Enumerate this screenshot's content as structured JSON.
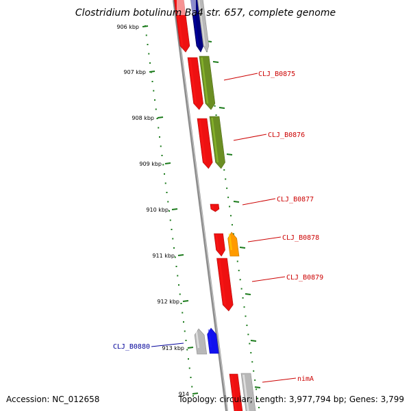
{
  "title": "Clostridium botulinum Ba4 str. 657, complete genome",
  "footer": {
    "accession": "Accession: NC_012658",
    "summary": "Topology: circular; Length: 3,977,794 bp; Genes: 3,799"
  },
  "colors": {
    "backbone": "#8c8c8c",
    "tick": "#1a7a1a",
    "forward_label": "#cc0000",
    "reverse_label": "#000099",
    "gene_red": "#ee1111",
    "gene_olive": "#6b8e23",
    "gene_orange": "#ff9a00",
    "gene_navy": "#000080",
    "gene_gray": "#b8b8b8",
    "gene_blue": "#1111ee"
  },
  "kbp_labels": [
    "906 kbp",
    "907 kbp",
    "908 kbp",
    "909 kbp",
    "910 kbp",
    "911 kbp",
    "912 kbp",
    "913 kbp",
    "914"
  ],
  "gene_labels": [
    {
      "text": "CLJ_B0875",
      "strand": "forward"
    },
    {
      "text": "CLJ_B0876",
      "strand": "forward"
    },
    {
      "text": "CLJ_B0877",
      "strand": "forward"
    },
    {
      "text": "CLJ_B0878",
      "strand": "forward"
    },
    {
      "text": "CLJ_B0879",
      "strand": "forward"
    },
    {
      "text": "CLJ_B0880",
      "strand": "reverse"
    },
    {
      "text": "nimA",
      "strand": "forward"
    }
  ]
}
